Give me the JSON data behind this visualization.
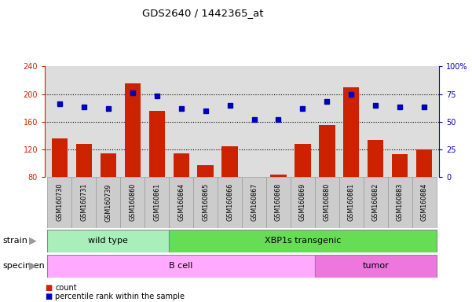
{
  "title": "GDS2640 / 1442365_at",
  "samples": [
    "GSM160730",
    "GSM160731",
    "GSM160739",
    "GSM160860",
    "GSM160861",
    "GSM160864",
    "GSM160865",
    "GSM160866",
    "GSM160867",
    "GSM160868",
    "GSM160869",
    "GSM160880",
    "GSM160881",
    "GSM160882",
    "GSM160883",
    "GSM160884"
  ],
  "counts": [
    135,
    128,
    114,
    215,
    175,
    114,
    97,
    124,
    80,
    83,
    128,
    155,
    210,
    133,
    113,
    120
  ],
  "percentiles": [
    66,
    63,
    62,
    76,
    73,
    62,
    60,
    65,
    52,
    52,
    62,
    68,
    75,
    65,
    63,
    63
  ],
  "ylim_left": [
    80,
    240
  ],
  "ylim_right": [
    0,
    100
  ],
  "yticks_left": [
    80,
    120,
    160,
    200,
    240
  ],
  "yticks_right": [
    0,
    25,
    50,
    75,
    100
  ],
  "bar_color": "#CC2200",
  "dot_color": "#0000BB",
  "bg_color": "#DDDDDD",
  "strain_groups": [
    {
      "label": "wild type",
      "start": 0,
      "end": 5,
      "color": "#AAEEBB"
    },
    {
      "label": "XBP1s transgenic",
      "start": 5,
      "end": 16,
      "color": "#66DD55"
    }
  ],
  "specimen_groups": [
    {
      "label": "B cell",
      "start": 0,
      "end": 11,
      "color": "#FFAAFF"
    },
    {
      "label": "tumor",
      "start": 11,
      "end": 16,
      "color": "#EE77DD"
    }
  ],
  "strain_label": "strain",
  "specimen_label": "specimen",
  "legend_count": "count",
  "legend_pct": "percentile rank within the sample",
  "left_axis_color": "#CC2200",
  "right_axis_color": "#0000BB",
  "tick_label_bg": "#CCCCCC",
  "tick_label_edge": "#999999"
}
